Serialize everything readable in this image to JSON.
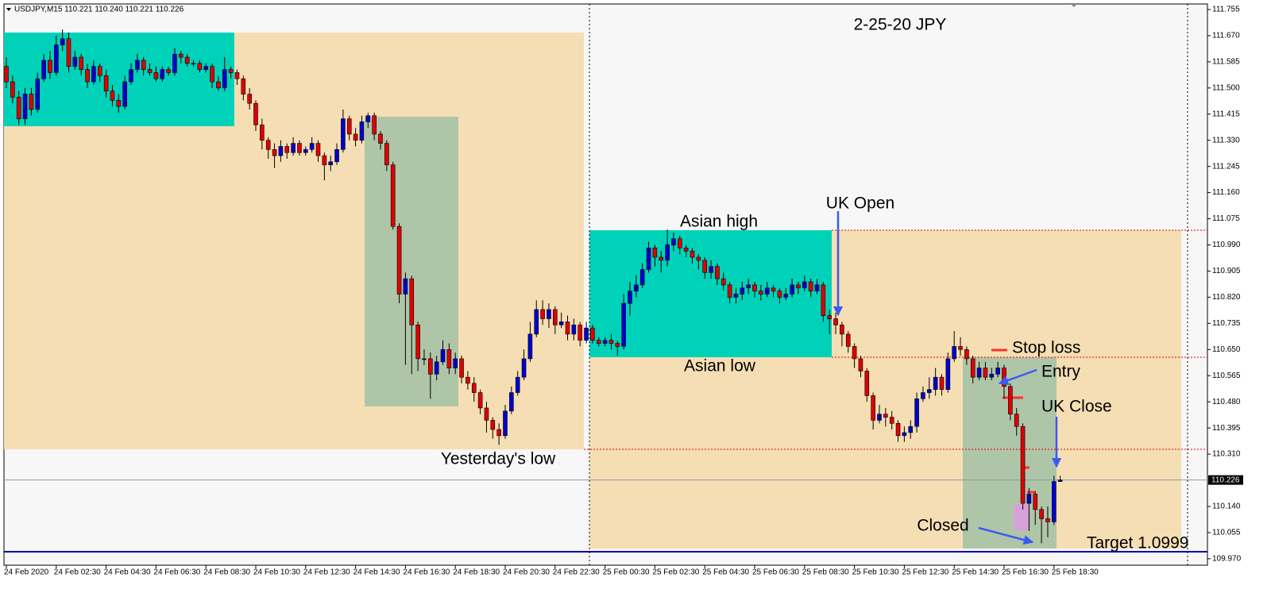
{
  "chart_data": {
    "type": "candlestick",
    "header": "USDJPY,M15  110.221 110.240 110.221 110.226",
    "title": "2-25-20  JPY",
    "annotations": {
      "asian_high": "Asian high",
      "uk_open": "UK Open",
      "asian_low": "Asian low",
      "stop_loss": "Stop loss",
      "entry": "Entry",
      "uk_close": "UK Close",
      "yesterdays_low": "Yesterday's low",
      "closed": "Closed",
      "target": "Target  1.0999"
    },
    "colors": {
      "up": "#0000cd",
      "down": "#e00000",
      "wick": "#000000"
    },
    "categories": [
      "24 Feb 2020",
      null,
      null,
      null,
      null,
      null,
      null,
      null,
      "24 Feb 02:30",
      null,
      null,
      null,
      null,
      null,
      null,
      null,
      "24 Feb 04:30",
      null,
      null,
      null,
      null,
      null,
      null,
      null,
      "24 Feb 06:30",
      null,
      null,
      null,
      null,
      null,
      null,
      null,
      "24 Feb 08:30",
      null,
      null,
      null,
      null,
      null,
      null,
      null,
      "24 Feb 10:30",
      null,
      null,
      null,
      null,
      null,
      null,
      null,
      "24 Feb 12:30",
      null,
      null,
      null,
      null,
      null,
      null,
      null,
      "24 Feb 14:30",
      null,
      null,
      null,
      null,
      null,
      null,
      null,
      "24 Feb 16:30",
      null,
      null,
      null,
      null,
      null,
      null,
      null,
      "24 Feb 18:30",
      null,
      null,
      null,
      null,
      null,
      null,
      null,
      "24 Feb 20:30",
      null,
      null,
      null,
      null,
      null,
      null,
      null,
      "24 Feb 22:30",
      null,
      null,
      null,
      null,
      null,
      null,
      null,
      "25 Feb 00:30",
      null,
      null,
      null,
      null,
      null,
      null,
      null,
      "25 Feb 02:30",
      null,
      null,
      null,
      null,
      null,
      null,
      null,
      "25 Feb 04:30",
      null,
      null,
      null,
      null,
      null,
      null,
      null,
      "25 Feb 06:30",
      null,
      null,
      null,
      null,
      null,
      null,
      null,
      "25 Feb 08:30",
      null,
      null,
      null,
      null,
      null,
      null,
      null,
      "25 Feb 10:30",
      null,
      null,
      null,
      null,
      null,
      null,
      null,
      "25 Feb 12:30",
      null,
      null,
      null,
      null,
      null,
      null,
      null,
      "25 Feb 14:30",
      null,
      null,
      null,
      null,
      null,
      null,
      null,
      "25 Feb 16:30",
      null,
      null,
      null,
      null,
      null,
      null,
      null,
      "25 Feb 18:30",
      null
    ],
    "open": [
      111.57,
      111.52,
      111.47,
      111.4,
      111.48,
      111.43,
      111.53,
      111.59,
      111.55,
      111.64,
      111.66,
      111.57,
      111.6,
      111.56,
      111.52,
      111.57,
      111.54,
      111.49,
      111.46,
      111.44,
      111.52,
      111.56,
      111.59,
      111.56,
      111.55,
      111.53,
      111.56,
      111.55,
      111.61,
      111.6,
      111.58,
      111.58,
      111.56,
      111.57,
      111.52,
      111.5,
      111.56,
      111.55,
      111.53,
      111.48,
      111.45,
      111.38,
      111.33,
      111.3,
      111.28,
      111.31,
      111.29,
      111.32,
      111.29,
      111.3,
      111.32,
      111.28,
      111.25,
      111.26,
      111.3,
      111.4,
      111.35,
      111.33,
      111.39,
      111.41,
      111.35,
      111.32,
      111.25,
      111.05,
      110.83,
      110.88,
      110.73,
      110.62,
      110.62,
      110.57,
      110.61,
      110.65,
      110.59,
      110.62,
      110.56,
      110.54,
      110.51,
      110.46,
      110.42,
      110.39,
      110.37,
      110.45,
      110.51,
      110.56,
      110.62,
      110.7,
      110.78,
      110.75,
      110.78,
      110.73,
      110.74,
      110.7,
      110.73,
      110.68,
      110.72,
      110.68,
      110.67,
      110.68,
      110.67,
      110.66,
      110.8,
      110.84,
      110.86,
      110.91,
      110.98,
      110.95,
      110.94,
      110.99,
      111.01,
      110.98,
      110.97,
      110.95,
      110.94,
      110.9,
      110.92,
      110.88,
      110.86,
      110.82,
      110.83,
      110.85,
      110.86,
      110.84,
      110.83,
      110.85,
      110.84,
      110.82,
      110.83,
      110.86,
      110.85,
      110.87,
      110.84,
      110.86,
      110.76,
      110.75,
      110.73,
      110.7,
      110.66,
      110.62,
      110.58,
      110.5,
      110.42,
      110.44,
      110.43,
      110.41,
      110.37,
      110.38,
      110.4,
      110.49,
      110.51,
      110.52,
      110.56,
      110.52,
      110.62,
      110.66,
      110.65,
      110.62,
      110.56,
      110.59,
      110.56,
      110.57,
      110.59,
      110.53,
      110.44,
      110.4,
      110.15,
      110.18,
      110.13,
      110.1,
      110.09,
      110.221
    ],
    "high": [
      111.6,
      111.54,
      111.49,
      111.5,
      111.5,
      111.55,
      111.61,
      111.62,
      111.67,
      111.69,
      111.68,
      111.62,
      111.61,
      111.58,
      111.59,
      111.58,
      111.56,
      111.51,
      111.48,
      111.54,
      111.58,
      111.61,
      111.6,
      111.58,
      111.57,
      111.57,
      111.57,
      111.63,
      111.62,
      111.61,
      111.59,
      111.59,
      111.58,
      111.58,
      111.54,
      111.6,
      111.57,
      111.56,
      111.54,
      111.5,
      111.46,
      111.4,
      111.34,
      111.32,
      111.33,
      111.32,
      111.34,
      111.33,
      111.31,
      111.34,
      111.33,
      111.29,
      111.28,
      111.32,
      111.43,
      111.41,
      111.37,
      111.41,
      111.42,
      111.42,
      111.36,
      111.33,
      111.26,
      111.06,
      110.9,
      110.89,
      110.74,
      110.65,
      110.64,
      110.63,
      110.68,
      110.67,
      110.64,
      110.63,
      110.58,
      110.56,
      110.52,
      110.48,
      110.43,
      110.41,
      110.47,
      110.53,
      110.58,
      110.65,
      110.74,
      110.81,
      110.81,
      110.8,
      110.79,
      110.77,
      110.76,
      110.75,
      110.74,
      110.74,
      110.73,
      110.69,
      110.69,
      110.7,
      110.68,
      110.83,
      110.87,
      110.89,
      110.93,
      111.0,
      110.99,
      110.97,
      111.04,
      111.03,
      111.02,
      110.99,
      110.98,
      110.96,
      110.95,
      110.94,
      110.93,
      110.9,
      110.87,
      110.85,
      110.87,
      110.88,
      110.87,
      110.86,
      110.87,
      110.86,
      110.85,
      110.85,
      110.88,
      110.87,
      110.89,
      110.88,
      110.88,
      110.87,
      110.78,
      110.77,
      110.74,
      110.71,
      110.67,
      110.63,
      110.59,
      110.51,
      110.47,
      110.46,
      110.45,
      110.42,
      110.4,
      110.42,
      110.51,
      110.53,
      110.56,
      110.59,
      110.57,
      110.64,
      110.71,
      110.69,
      110.66,
      110.63,
      110.61,
      110.61,
      110.59,
      110.61,
      110.6,
      110.54,
      110.46,
      110.41,
      110.2,
      110.19,
      110.14,
      110.14,
      110.24,
      110.24
    ],
    "low": [
      111.5,
      111.45,
      111.38,
      111.38,
      111.41,
      111.42,
      111.52,
      111.53,
      111.54,
      111.62,
      111.55,
      111.56,
      111.54,
      111.5,
      111.51,
      111.52,
      111.47,
      111.44,
      111.42,
      111.43,
      111.51,
      111.55,
      111.54,
      111.54,
      111.52,
      111.52,
      111.54,
      111.54,
      111.58,
      111.57,
      111.57,
      111.55,
      111.55,
      111.5,
      111.49,
      111.49,
      111.53,
      111.51,
      111.46,
      111.43,
      111.36,
      111.3,
      111.27,
      111.24,
      111.26,
      111.27,
      111.28,
      111.28,
      111.28,
      111.29,
      111.26,
      111.2,
      111.23,
      111.25,
      111.29,
      111.33,
      111.31,
      111.32,
      111.37,
      111.33,
      111.3,
      111.23,
      111.04,
      110.8,
      110.6,
      110.57,
      110.58,
      110.6,
      110.49,
      110.55,
      110.6,
      110.57,
      110.57,
      110.54,
      110.52,
      110.48,
      110.44,
      110.38,
      110.36,
      110.34,
      110.36,
      110.44,
      110.5,
      110.55,
      110.61,
      110.69,
      110.73,
      110.72,
      110.7,
      110.72,
      110.68,
      110.68,
      110.66,
      110.67,
      110.67,
      110.66,
      110.66,
      110.65,
      110.63,
      110.65,
      110.76,
      110.82,
      110.85,
      110.9,
      110.92,
      110.9,
      110.92,
      110.97,
      110.96,
      110.95,
      110.93,
      110.91,
      110.88,
      110.88,
      110.86,
      110.84,
      110.8,
      110.8,
      110.81,
      110.83,
      110.82,
      110.81,
      110.82,
      110.82,
      110.8,
      110.81,
      110.82,
      110.83,
      110.84,
      110.82,
      110.83,
      110.74,
      110.7,
      110.7,
      110.66,
      110.64,
      110.59,
      110.56,
      110.48,
      110.39,
      110.41,
      110.4,
      110.39,
      110.35,
      110.35,
      110.36,
      110.38,
      110.48,
      110.49,
      110.5,
      110.5,
      110.51,
      110.61,
      110.63,
      110.6,
      110.54,
      110.55,
      110.55,
      110.55,
      110.56,
      110.49,
      110.42,
      110.37,
      110.13,
      110.06,
      110.08,
      110.02,
      110.04,
      110.08,
      110.221
    ],
    "close": [
      111.52,
      111.47,
      111.4,
      111.48,
      111.43,
      111.53,
      111.59,
      111.55,
      111.64,
      111.66,
      111.57,
      111.6,
      111.56,
      111.52,
      111.57,
      111.54,
      111.49,
      111.46,
      111.44,
      111.52,
      111.56,
      111.59,
      111.56,
      111.55,
      111.53,
      111.56,
      111.55,
      111.61,
      111.6,
      111.58,
      111.58,
      111.56,
      111.57,
      111.52,
      111.5,
      111.56,
      111.55,
      111.53,
      111.48,
      111.45,
      111.38,
      111.33,
      111.3,
      111.28,
      111.31,
      111.29,
      111.32,
      111.29,
      111.3,
      111.32,
      111.28,
      111.25,
      111.26,
      111.3,
      111.4,
      111.35,
      111.33,
      111.39,
      111.41,
      111.35,
      111.32,
      111.25,
      111.05,
      110.83,
      110.88,
      110.73,
      110.62,
      110.62,
      110.57,
      110.61,
      110.65,
      110.59,
      110.62,
      110.56,
      110.54,
      110.51,
      110.46,
      110.42,
      110.39,
      110.37,
      110.45,
      110.51,
      110.56,
      110.62,
      110.7,
      110.78,
      110.75,
      110.78,
      110.73,
      110.74,
      110.7,
      110.73,
      110.68,
      110.72,
      110.68,
      110.67,
      110.68,
      110.67,
      110.66,
      110.8,
      110.84,
      110.86,
      110.91,
      110.98,
      110.95,
      110.94,
      110.99,
      111.01,
      110.98,
      110.97,
      110.95,
      110.94,
      110.9,
      110.92,
      110.88,
      110.86,
      110.82,
      110.83,
      110.85,
      110.86,
      110.84,
      110.83,
      110.85,
      110.84,
      110.82,
      110.83,
      110.86,
      110.85,
      110.87,
      110.84,
      110.86,
      110.76,
      110.75,
      110.73,
      110.7,
      110.66,
      110.62,
      110.58,
      110.5,
      110.42,
      110.44,
      110.43,
      110.41,
      110.37,
      110.38,
      110.4,
      110.49,
      110.51,
      110.52,
      110.56,
      110.52,
      110.62,
      110.66,
      110.65,
      110.62,
      110.56,
      110.59,
      110.56,
      110.57,
      110.59,
      110.53,
      110.44,
      110.4,
      110.15,
      110.18,
      110.13,
      110.1,
      110.09,
      110.221,
      110.226
    ],
    "ylim": [
      109.949,
      111.773
    ],
    "yticks": [
      111.755,
      {
        "value": 111.67,
        "label": "111.670"
      },
      111.585,
      {
        "value": 111.5,
        "label": "111.500"
      },
      111.415,
      {
        "value": 111.33,
        "label": "111.330"
      },
      111.245,
      {
        "value": 111.16,
        "label": "111.160"
      },
      111.075,
      {
        "value": 110.99,
        "label": "110.990"
      },
      110.905,
      {
        "value": 110.82,
        "label": "110.820"
      },
      110.735,
      {
        "value": 110.65,
        "label": "110.650"
      },
      110.565,
      {
        "value": 110.48,
        "label": "110.480"
      },
      110.395,
      {
        "value": 110.31,
        "label": "110.310"
      },
      {
        "value": 110.14,
        "label": "110.140"
      },
      110.055,
      {
        "value": 109.97,
        "label": "109.970"
      }
    ],
    "current_price": 110.226
  }
}
